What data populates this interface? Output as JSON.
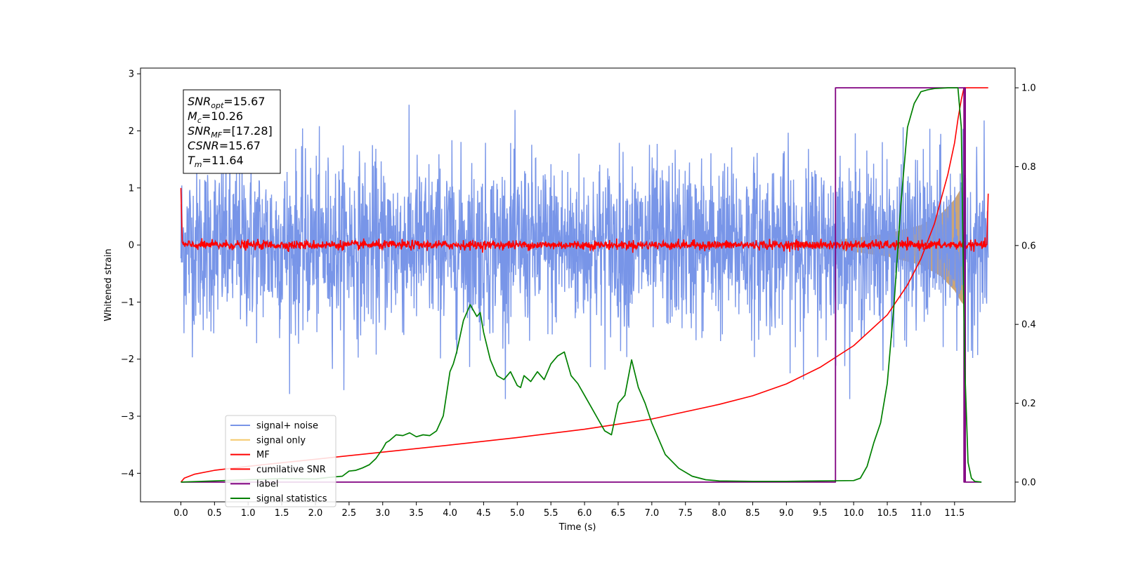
{
  "chart_data": {
    "type": "line",
    "title": "",
    "xlabel": "Time (s)",
    "ylabel": "Whitened strain",
    "ylabel_right": "",
    "xlim": [
      -0.6,
      12.4
    ],
    "ylim": [
      -4.5,
      3.1
    ],
    "ylim_right": [
      -0.05,
      1.05
    ],
    "x_ticks": [
      0.0,
      0.5,
      1.0,
      1.5,
      2.0,
      2.5,
      3.0,
      3.5,
      4.0,
      4.5,
      5.0,
      5.5,
      6.0,
      6.5,
      7.0,
      7.5,
      8.0,
      8.5,
      9.0,
      9.5,
      10.0,
      10.5,
      11.0,
      11.5
    ],
    "x_tick_labels": [
      "0.0",
      "0.5",
      "1.0",
      "1.5",
      "2.0",
      "2.5",
      "3.0",
      "3.5",
      "4.0",
      "4.5",
      "5.0",
      "5.5",
      "6.0",
      "6.5",
      "7.0",
      "7.5",
      "8.0",
      "8.5",
      "9.0",
      "9.5",
      "10.0",
      "10.5",
      "11.0",
      "11.5"
    ],
    "y_ticks": [
      -4,
      -3,
      -2,
      -1,
      0,
      1,
      2,
      3
    ],
    "y_tick_labels": [
      "−4",
      "−3",
      "−2",
      "−1",
      "0",
      "1",
      "2",
      "3"
    ],
    "y_right_ticks": [
      0.0,
      0.2,
      0.4,
      0.6,
      0.8,
      1.0
    ],
    "y_right_tick_labels": [
      "0.0",
      "0.2",
      "0.4",
      "0.6",
      "0.8",
      "1.0"
    ],
    "grid": false,
    "legend": {
      "placement": "lower-left",
      "entries": [
        {
          "label": "signal+ noise",
          "color": "#7895e8"
        },
        {
          "label": "signal only",
          "color": "#f5c96b"
        },
        {
          "label": "MF",
          "color": "#ff0000"
        },
        {
          "label": "cumilative SNR",
          "color": "#ff0000"
        },
        {
          "label": "label",
          "color": "#800080"
        },
        {
          "label": "signal statistics",
          "color": "#008000"
        }
      ]
    },
    "annotation": [
      {
        "base": "SNR",
        "sub": "opt",
        "value": "=15.67"
      },
      {
        "base": "M",
        "sub": "c",
        "value": "=10.26"
      },
      {
        "base": "SNR",
        "sub": "MF",
        "value": "=[17.28]"
      },
      {
        "base": "CSNR",
        "sub": "",
        "value": "=15.67"
      },
      {
        "base": "T",
        "sub": "m",
        "value": "=11.64"
      }
    ],
    "series": [
      {
        "name": "signal+ noise",
        "axis": "left",
        "color": "#7895e8",
        "noise_sigma": 0.75,
        "x_range": [
          0.0,
          12.0
        ]
      },
      {
        "name": "signal only",
        "axis": "left",
        "color": "#f5c96b",
        "envelope_x": [
          9.0,
          9.5,
          10.0,
          10.5,
          11.0,
          11.3,
          11.5,
          11.6,
          11.64
        ],
        "envelope_amp": [
          0.03,
          0.07,
          0.12,
          0.2,
          0.35,
          0.55,
          0.8,
          1.0,
          1.05
        ]
      },
      {
        "name": "MF",
        "axis": "left",
        "color": "#ff0000",
        "noise_sigma": 0.04,
        "x_range": [
          0.0,
          12.0
        ],
        "start_value": 1.0,
        "end_value": 0.9
      },
      {
        "name": "cumilative SNR",
        "axis": "right",
        "color": "#ff0000",
        "x": [
          0.0,
          0.05,
          0.2,
          0.5,
          1.0,
          2.0,
          3.0,
          4.0,
          5.0,
          6.0,
          7.0,
          8.0,
          8.5,
          9.0,
          9.5,
          10.0,
          10.5,
          10.8,
          11.0,
          11.2,
          11.4,
          11.5,
          11.55,
          11.6,
          11.64,
          12.0
        ],
        "values": [
          0.0,
          0.01,
          0.02,
          0.03,
          0.04,
          0.058,
          0.076,
          0.094,
          0.113,
          0.134,
          0.16,
          0.197,
          0.219,
          0.249,
          0.291,
          0.346,
          0.424,
          0.5,
          0.566,
          0.655,
          0.78,
          0.86,
          0.92,
          0.97,
          1.0,
          1.0
        ]
      },
      {
        "name": "label",
        "axis": "right",
        "color": "#800080",
        "x": [
          0.0,
          9.73,
          9.73,
          11.64,
          11.64,
          11.66,
          11.66,
          11.64,
          11.64,
          11.9
        ],
        "values": [
          0.0,
          0.0,
          1.0,
          1.0,
          0.0,
          0.0,
          1.0,
          1.0,
          0.0,
          0.0
        ]
      },
      {
        "name": "signal statistics",
        "axis": "right",
        "color": "#008000",
        "x": [
          0.0,
          0.5,
          1.0,
          1.5,
          2.0,
          2.2,
          2.4,
          2.5,
          2.6,
          2.7,
          2.8,
          2.9,
          3.0,
          3.05,
          3.1,
          3.2,
          3.3,
          3.4,
          3.5,
          3.6,
          3.7,
          3.8,
          3.9,
          4.0,
          4.05,
          4.1,
          4.2,
          4.3,
          4.4,
          4.45,
          4.5,
          4.6,
          4.7,
          4.8,
          4.9,
          5.0,
          5.05,
          5.1,
          5.2,
          5.3,
          5.4,
          5.5,
          5.6,
          5.7,
          5.8,
          5.9,
          6.0,
          6.1,
          6.2,
          6.3,
          6.4,
          6.5,
          6.6,
          6.7,
          6.8,
          6.9,
          7.0,
          7.2,
          7.4,
          7.6,
          7.8,
          8.0,
          8.5,
          9.0,
          9.5,
          10.0,
          10.1,
          10.2,
          10.3,
          10.4,
          10.5,
          10.6,
          10.7,
          10.8,
          10.9,
          11.0,
          11.1,
          11.2,
          11.4,
          11.55,
          11.6,
          11.65,
          11.7,
          11.75,
          11.8,
          11.9
        ],
        "values": [
          0.0,
          0.003,
          0.006,
          0.009,
          0.008,
          0.012,
          0.015,
          0.028,
          0.03,
          0.036,
          0.044,
          0.06,
          0.085,
          0.1,
          0.105,
          0.12,
          0.118,
          0.125,
          0.115,
          0.12,
          0.118,
          0.13,
          0.168,
          0.28,
          0.3,
          0.33,
          0.41,
          0.45,
          0.42,
          0.43,
          0.38,
          0.31,
          0.27,
          0.26,
          0.28,
          0.245,
          0.24,
          0.27,
          0.255,
          0.28,
          0.26,
          0.3,
          0.32,
          0.33,
          0.27,
          0.25,
          0.22,
          0.19,
          0.16,
          0.13,
          0.12,
          0.2,
          0.22,
          0.31,
          0.24,
          0.2,
          0.15,
          0.07,
          0.035,
          0.015,
          0.006,
          0.003,
          0.002,
          0.002,
          0.003,
          0.004,
          0.01,
          0.04,
          0.1,
          0.15,
          0.25,
          0.45,
          0.7,
          0.9,
          0.96,
          0.99,
          0.995,
          0.998,
          1.0,
          1.0,
          0.9,
          0.3,
          0.05,
          0.01,
          0.002,
          0.0
        ]
      }
    ]
  }
}
